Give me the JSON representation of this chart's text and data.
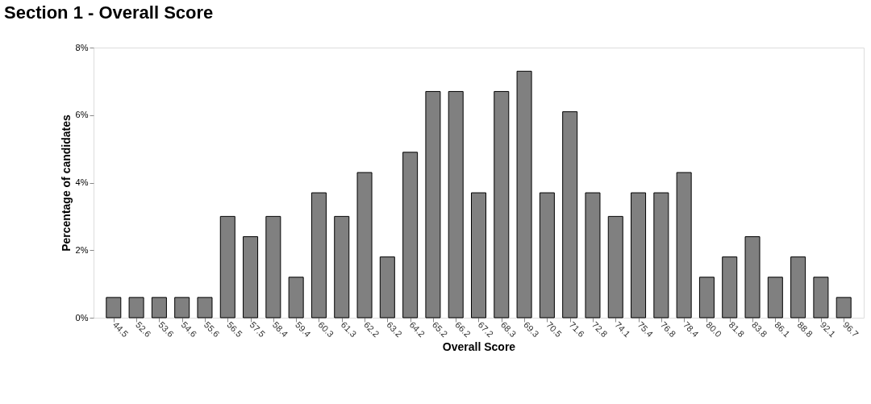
{
  "chart_data": {
    "type": "bar",
    "title": "Section 1 - Overall Score",
    "xlabel": "Overall Score",
    "ylabel": "Percentage of candidates",
    "categories": [
      "44.5",
      "52.6",
      "53.6",
      "54.6",
      "55.6",
      "56.5",
      "57.5",
      "58.4",
      "59.4",
      "60.3",
      "61.3",
      "62.2",
      "63.2",
      "64.2",
      "65.2",
      "66.2",
      "67.2",
      "68.3",
      "69.3",
      "70.5",
      "71.6",
      "72.8",
      "74.1",
      "75.4",
      "76.8",
      "78.4",
      "80.0",
      "81.8",
      "83.8",
      "86.1",
      "88.8",
      "92.1",
      "96.7"
    ],
    "values": [
      0.6,
      0.6,
      0.6,
      0.6,
      0.6,
      3.0,
      2.4,
      3.0,
      1.2,
      3.7,
      3.0,
      4.3,
      1.8,
      4.9,
      6.7,
      6.7,
      3.7,
      6.7,
      7.3,
      3.7,
      6.1,
      3.7,
      3.0,
      3.7,
      3.7,
      4.3,
      1.2,
      1.8,
      2.4,
      1.2,
      1.8,
      1.2,
      0.6
    ],
    "color": "#808080",
    "ylim": [
      0,
      8
    ],
    "yticks": [
      {
        "value": 0,
        "label": "0%"
      },
      {
        "value": 2,
        "label": "2%"
      },
      {
        "value": 4,
        "label": "4%"
      },
      {
        "value": 6,
        "label": "6%"
      },
      {
        "value": 8,
        "label": "8%"
      }
    ],
    "grid": false
  }
}
